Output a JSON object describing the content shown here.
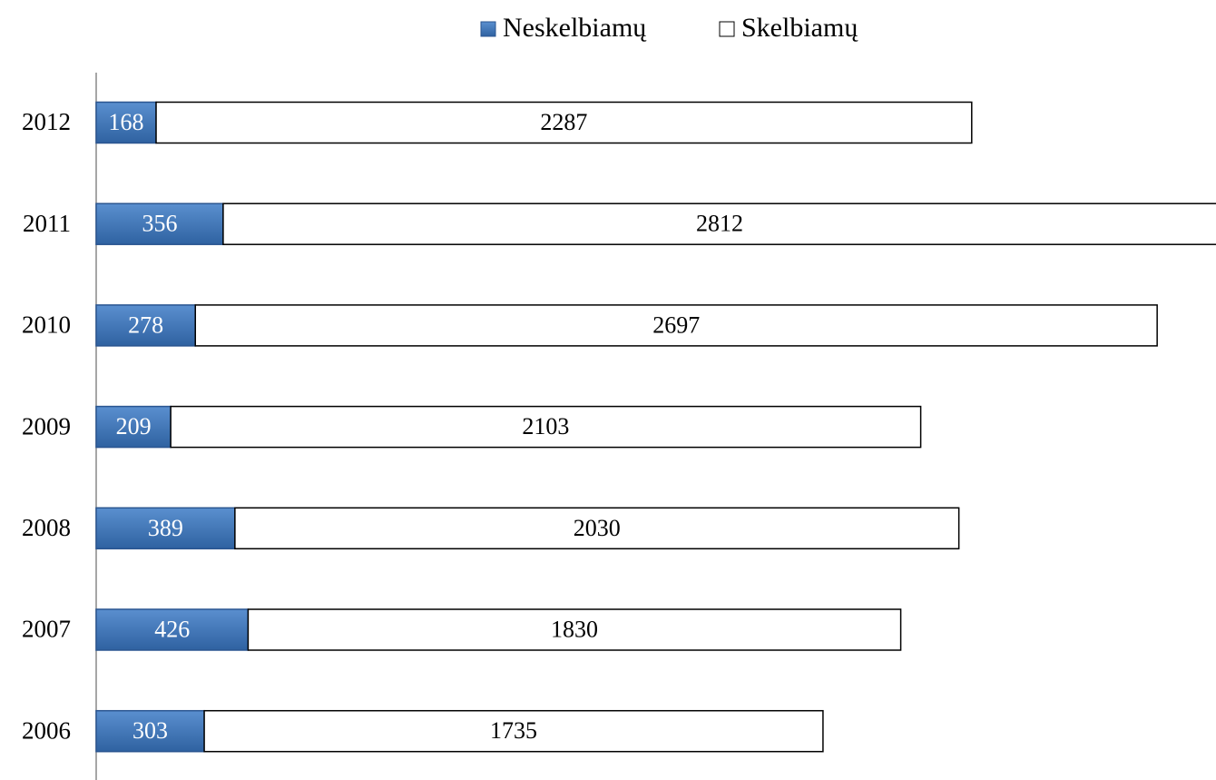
{
  "chart_data": {
    "type": "stacked_bar_horizontal",
    "categories": [
      "2012",
      "2011",
      "2010",
      "2009",
      "2008",
      "2007",
      "2006"
    ],
    "series": [
      {
        "name": "Neskelbiamų",
        "color": "#3d73b4",
        "values": [
          168,
          356,
          278,
          209,
          389,
          426,
          303
        ]
      },
      {
        "name": "Skelbiamų",
        "color": "#ffffff",
        "values": [
          2287,
          2812,
          2697,
          2103,
          2030,
          1830,
          1735
        ]
      }
    ],
    "xlim": [
      0,
      3140
    ],
    "legend": "top"
  }
}
